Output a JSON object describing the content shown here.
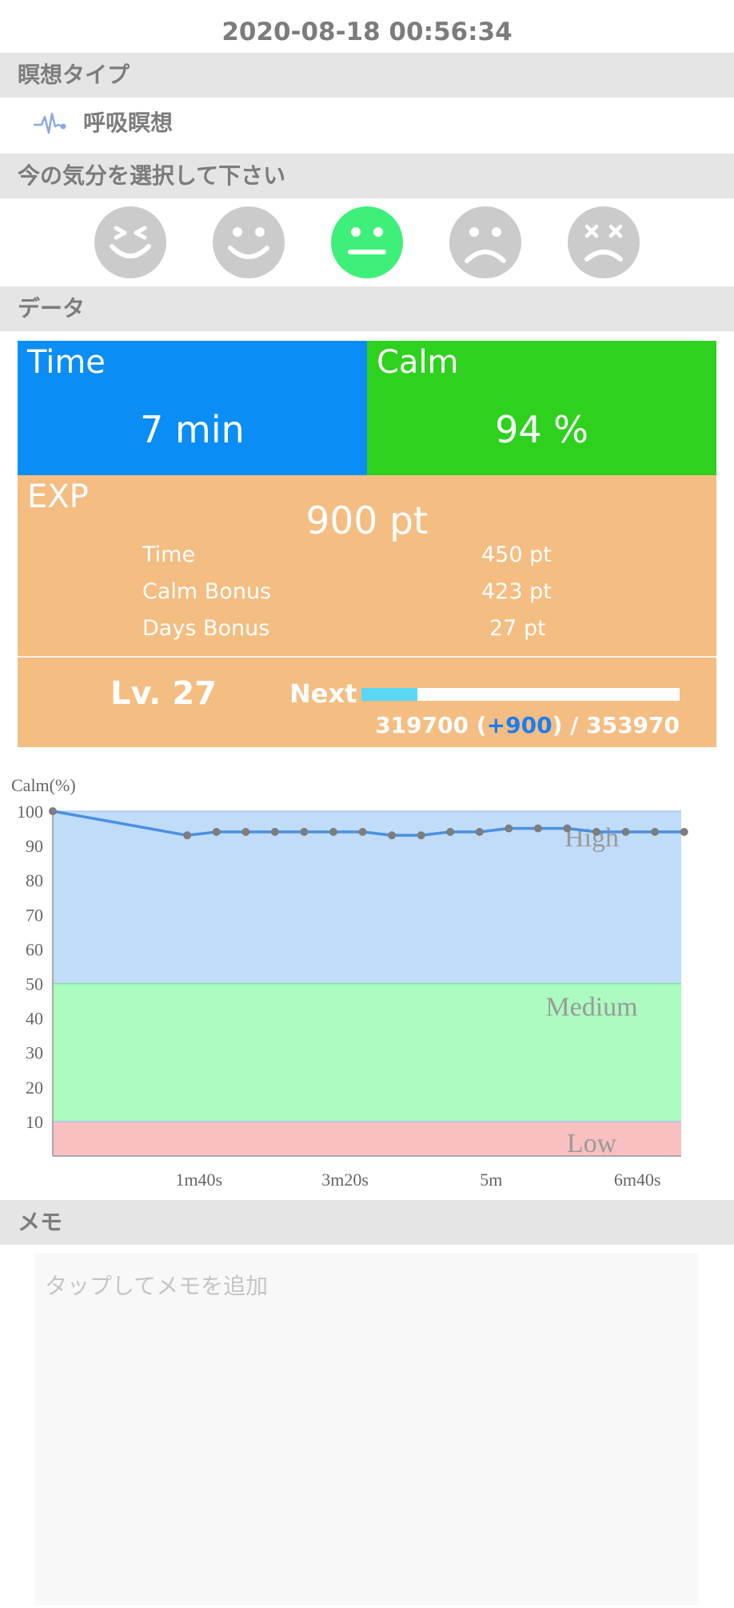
{
  "timestamp": "2020-08-18 00:56:34",
  "sections": {
    "type_header": "瞑想タイプ",
    "mood_header": "今の気分を選択して下さい",
    "data_header": "データ",
    "memo_header": "メモ"
  },
  "meditation_type": {
    "label": "呼吸瞑想",
    "icon": "pulse-wave-icon"
  },
  "moods": {
    "selected_index": 2,
    "items": [
      "laughing-face-icon",
      "smile-face-icon",
      "neutral-face-icon",
      "sad-face-icon",
      "dizzy-face-icon"
    ]
  },
  "stats": {
    "time": {
      "label": "Time",
      "value": "7 min",
      "color": "#0a8df5"
    },
    "calm": {
      "label": "Calm",
      "value": "94 %",
      "color": "#2ed11d"
    }
  },
  "exp": {
    "label": "EXP",
    "total": "900 pt",
    "color": "#f4bd82",
    "rows": [
      {
        "name": "Time",
        "value": "450 pt"
      },
      {
        "name": "Calm Bonus",
        "value": "423 pt"
      },
      {
        "name": "Days Bonus",
        "value": "27 pt"
      }
    ]
  },
  "level": {
    "label": "Lv. 27",
    "next_label": "Next",
    "progress_fraction": 0.175,
    "current": "319700 (",
    "gain": "+900",
    "target": ") / 353970"
  },
  "chart_data": {
    "type": "line",
    "ylabel": "Calm(%)",
    "ylim": [
      0,
      100
    ],
    "yticks": [
      10,
      20,
      30,
      40,
      50,
      60,
      70,
      80,
      90,
      100
    ],
    "xlim_seconds": [
      0,
      430
    ],
    "xticks": [
      {
        "label": "1m40s",
        "seconds": 100
      },
      {
        "label": "3m20s",
        "seconds": 200
      },
      {
        "label": "5m",
        "seconds": 300
      },
      {
        "label": "6m40s",
        "seconds": 400
      }
    ],
    "bands": [
      {
        "name": "Low",
        "from": 0,
        "to": 10,
        "color": "#f8c0c0"
      },
      {
        "name": "Medium",
        "from": 10,
        "to": 50,
        "color": "#acfbc0"
      },
      {
        "name": "High",
        "from": 50,
        "to": 100,
        "color": "#c0dcf8"
      }
    ],
    "series": [
      {
        "x_seconds": [
          0,
          92,
          112,
          132,
          152,
          172,
          192,
          212,
          232,
          252,
          272,
          292,
          312,
          332,
          352,
          372,
          392,
          412,
          432
        ],
        "values": [
          100,
          93,
          94,
          94,
          94,
          94,
          94,
          94,
          93,
          93,
          94,
          94,
          95,
          95,
          95,
          94,
          94,
          94,
          94
        ],
        "color": "#4a90e2"
      }
    ]
  },
  "memo": {
    "placeholder": "タップしてメモを追加"
  }
}
